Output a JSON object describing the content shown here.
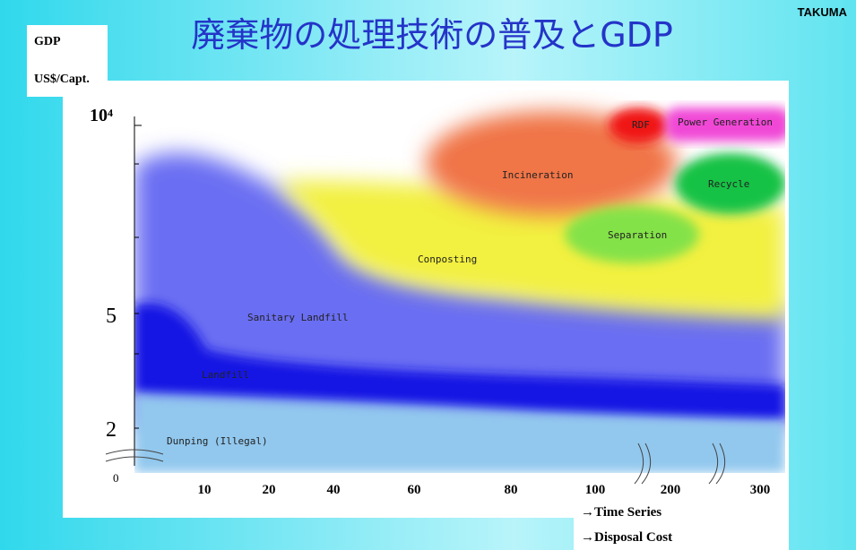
{
  "header": {
    "title": "廃棄物の処理技術の普及とGDP",
    "brand": "TAKUMA"
  },
  "y_axis": {
    "label_top": "GDP",
    "label_unit": "US$/Capt.",
    "ticks": [
      "10⁴",
      "5",
      "2",
      "0"
    ]
  },
  "x_axis": {
    "ticks": [
      "10",
      "20",
      "40",
      "60",
      "80",
      "100",
      "200",
      "300"
    ],
    "notes": [
      "→Time Series",
      "→Disposal Cost"
    ]
  },
  "regions": [
    "Dunping (Illegal)",
    "Landfill",
    "Sanitary Landfill",
    "Conposting",
    "Separation",
    "Incineration",
    "RDF",
    "Power Generation",
    "Recycle"
  ]
}
